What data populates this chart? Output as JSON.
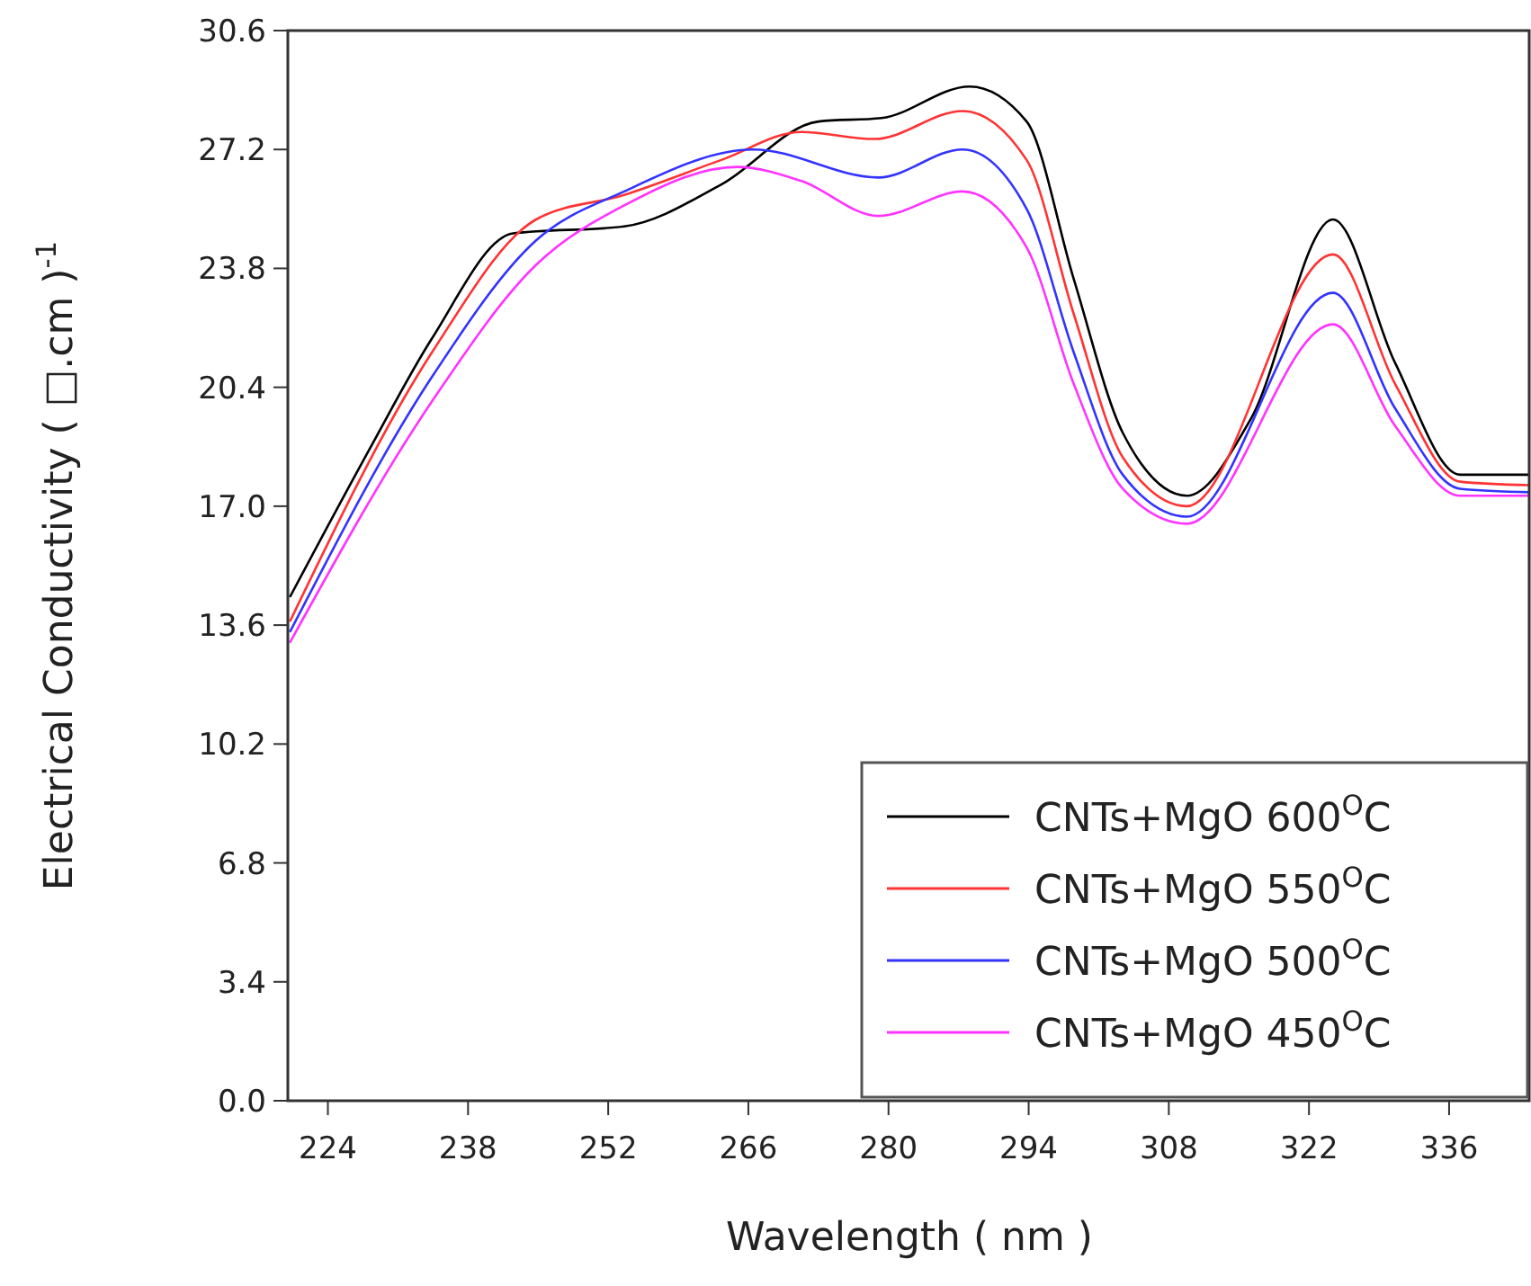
{
  "chart_data": {
    "type": "line",
    "xlabel": "Wavelength ( nm )",
    "ylabel": "Electrical Conductivity ( □.cm )$^{-1}$",
    "xlim": [
      220,
      344
    ],
    "ylim": [
      0,
      30.6
    ],
    "xticks": [
      224,
      238,
      252,
      266,
      280,
      294,
      308,
      322,
      336
    ],
    "yticks": [
      {
        "value": 0,
        "label": "0.0"
      },
      3.4,
      6.8,
      10.2,
      13.6,
      {
        "value": 17,
        "label": "17.0"
      },
      20.4,
      23.8,
      27.2,
      30.6
    ],
    "legend": "bottom right",
    "grid": false,
    "marker": "none",
    "line_style": "solid",
    "series": [
      {
        "name": "CNTs+MgO 600$^{O}$C",
        "color": "#000000",
        "x": [
          220.2,
          228.1,
          234.4,
          242.5,
          253.6,
          263.3,
          273,
          279.3,
          288.1,
          293.8,
          298.5,
          303.4,
          309.8,
          316.2,
          324.4,
          330.6,
          337.1,
          344
        ],
        "values": [
          14.4,
          18.6,
          21.8,
          24.8,
          25.0,
          26.2,
          28.0,
          28.1,
          29.0,
          28.0,
          23.5,
          19.1,
          17.3,
          19.5,
          25.2,
          21.1,
          17.9,
          17.9
        ]
      },
      {
        "name": "CNTs+MgO 550$^{O}$C",
        "color": "#ff3333",
        "x": [
          220.2,
          234.4,
          244.8,
          253.6,
          263.3,
          271.3,
          278.6,
          287.4,
          293.8,
          298.5,
          303.4,
          309.8,
          324.4,
          330.6,
          337.1,
          344
        ],
        "values": [
          13.7,
          21.4,
          25.2,
          25.9,
          26.9,
          27.7,
          27.5,
          28.3,
          26.9,
          22.5,
          18.4,
          17.0,
          24.2,
          20.5,
          17.7,
          17.6
        ]
      },
      {
        "name": "CNTs+MgO 500$^{O}$C",
        "color": "#3333ff",
        "x": [
          220.2,
          234.4,
          244.8,
          253.6,
          266.5,
          279,
          287.4,
          293.8,
          298.5,
          303.4,
          309.8,
          324.4,
          330.6,
          337.1,
          344
        ],
        "values": [
          13.4,
          20.7,
          24.6,
          26.0,
          27.2,
          26.4,
          27.2,
          25.5,
          21.4,
          17.9,
          16.7,
          23.1,
          19.8,
          17.5,
          17.4
        ]
      },
      {
        "name": "CNTs+MgO 450$^{O}$C",
        "color": "#ff33ff",
        "x": [
          220.2,
          234.4,
          244.8,
          253.6,
          264.9,
          271.3,
          279,
          287.4,
          293.8,
          298.5,
          303.4,
          309.8,
          324.4,
          330.6,
          337.1,
          344
        ],
        "values": [
          13.1,
          20.0,
          23.9,
          25.6,
          26.7,
          26.3,
          25.3,
          26.0,
          24.4,
          20.5,
          17.5,
          16.5,
          22.2,
          19.3,
          17.3,
          17.3
        ]
      }
    ]
  }
}
